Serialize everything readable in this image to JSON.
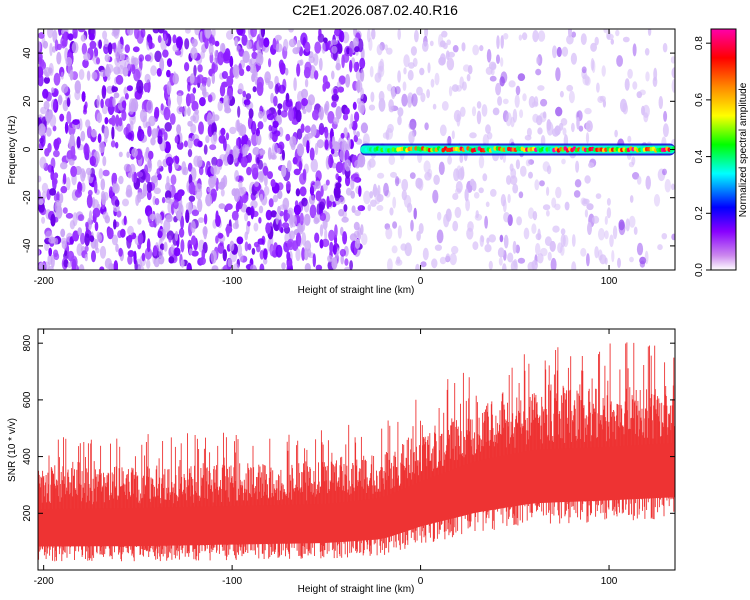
{
  "page": {
    "title": "C2E1.2026.087.02.40.R16"
  },
  "chart_data": [
    {
      "type": "heatmap",
      "title": "C2E1.2026.087.02.40.R16",
      "xlabel": "Height of straight line (km)",
      "ylabel": "Frequency (Hz)",
      "xlim": [
        -203,
        135
      ],
      "ylim": [
        -50,
        50
      ],
      "x_ticks": [
        -200,
        -100,
        0,
        100
      ],
      "y_ticks": [
        -40,
        -20,
        0,
        20,
        40
      ],
      "colorbar": {
        "label": "Normalized spectral amplitude",
        "range": [
          0.0,
          0.85
        ],
        "ticks": [
          0.0,
          0.2,
          0.4,
          0.6,
          0.8
        ],
        "colors": [
          "#ffffff",
          "#cc88ee",
          "#8800ff",
          "#0000ff",
          "#00ffff",
          "#00ff00",
          "#ffff00",
          "#ff8800",
          "#ff0000",
          "#ff00aa"
        ]
      },
      "features": {
        "noise_background_x": [
          -203,
          -30
        ],
        "noise_background_amplitude": 0.1,
        "faded_noise_x": [
          -30,
          135
        ],
        "signal_line": {
          "frequency_hz": 0,
          "x_start": -32,
          "x_end": 135,
          "amplitude": 0.8
        }
      }
    },
    {
      "type": "area",
      "title": "",
      "xlabel": "Height of straight line (km)",
      "ylabel": "SNR (10 * v/v)",
      "xlim": [
        -203,
        135
      ],
      "ylim": [
        0,
        850
      ],
      "x_ticks": [
        -200,
        -100,
        0,
        100
      ],
      "y_ticks": [
        200,
        400,
        600,
        800
      ],
      "color": "#ee3333",
      "envelope": {
        "x": [
          -203,
          -150,
          -100,
          -50,
          -20,
          0,
          30,
          60,
          100,
          135
        ],
        "lower": [
          30,
          30,
          35,
          40,
          50,
          90,
          130,
          160,
          170,
          180
        ],
        "upper": [
          470,
          480,
          490,
          500,
          540,
          620,
          740,
          790,
          800,
          820
        ]
      }
    }
  ]
}
